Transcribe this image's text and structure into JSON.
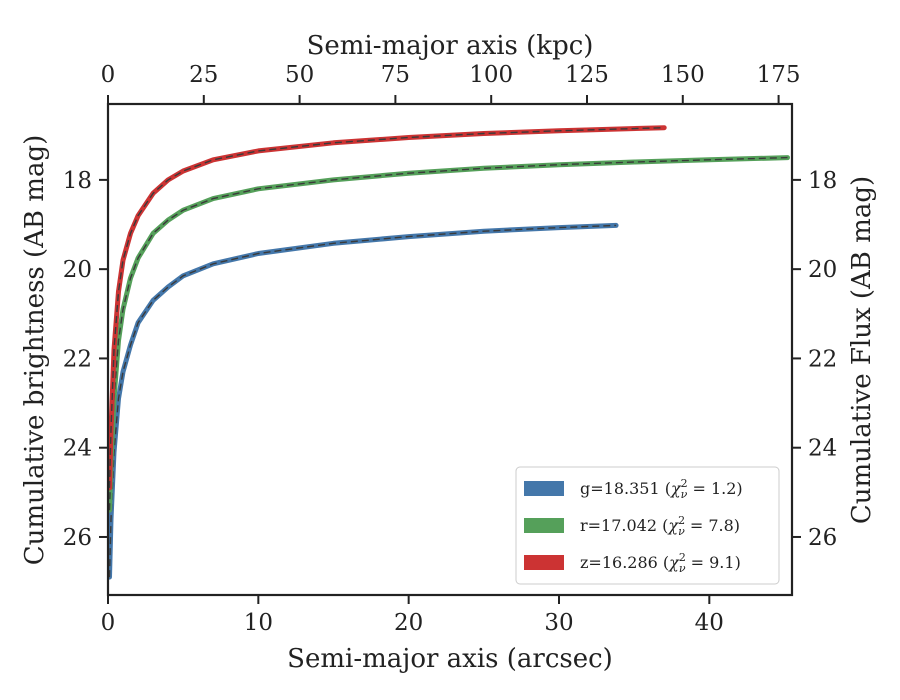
{
  "chart_data": {
    "type": "line",
    "title": "",
    "xlabel": "Semi-major axis (arcsec)",
    "x2label": "Semi-major axis (kpc)",
    "ylabel": "Cumulative brightness (AB mag)",
    "y2label": "Cumulative Flux (AB mag)",
    "xlim": [
      0,
      45.5
    ],
    "x2lim": [
      0,
      178.5
    ],
    "ylim": [
      27.3,
      16.3
    ],
    "y_inverted": true,
    "xticks": [
      0,
      10,
      20,
      30,
      40
    ],
    "x2ticks": [
      0,
      25,
      50,
      75,
      100,
      125,
      150,
      175
    ],
    "yticks": [
      18,
      20,
      22,
      24,
      26
    ],
    "legend_position": "lower-right",
    "grid": false,
    "series": [
      {
        "name": "g=18.351",
        "chi2": "1.2",
        "color": "#4477aa",
        "x": [
          0.1,
          0.2,
          0.4,
          0.7,
          1.0,
          1.5,
          2,
          3,
          4,
          5,
          7,
          10,
          15,
          20,
          25,
          30,
          33.8
        ],
        "y": [
          26.9,
          25.6,
          24.1,
          22.9,
          22.3,
          21.7,
          21.2,
          20.7,
          20.4,
          20.15,
          19.88,
          19.65,
          19.42,
          19.27,
          19.15,
          19.07,
          19.02
        ]
      },
      {
        "name": "r=17.042",
        "chi2": "7.8",
        "color": "#55a05a",
        "x": [
          0.1,
          0.2,
          0.4,
          0.7,
          1.0,
          1.5,
          2,
          3,
          4,
          5,
          7,
          10,
          15,
          20,
          25,
          30,
          35,
          40,
          45.2
        ],
        "y": [
          25.4,
          24.3,
          22.9,
          21.6,
          20.9,
          20.2,
          19.75,
          19.2,
          18.9,
          18.68,
          18.42,
          18.2,
          18.0,
          17.85,
          17.74,
          17.66,
          17.6,
          17.55,
          17.5
        ]
      },
      {
        "name": "z=16.286",
        "chi2": "9.1",
        "color": "#cc3333",
        "x": [
          0.1,
          0.2,
          0.4,
          0.7,
          1.0,
          1.5,
          2,
          3,
          4,
          5,
          7,
          10,
          15,
          20,
          25,
          30,
          37
        ],
        "y": [
          24.9,
          23.6,
          21.8,
          20.5,
          19.8,
          19.2,
          18.8,
          18.3,
          18.0,
          17.8,
          17.55,
          17.35,
          17.17,
          17.05,
          16.96,
          16.9,
          16.83
        ]
      }
    ]
  },
  "legend": {
    "g_prefix": "g=18.351 (",
    "r_prefix": "r=17.042 (",
    "z_prefix": "z=16.286 (",
    "chi_symbol": "χ",
    "chi_sup": "2",
    "chi_sub": "ν",
    "eq": " = ",
    "g_val": "1.2",
    "r_val": "7.8",
    "z_val": "9.1",
    "close": ")"
  }
}
